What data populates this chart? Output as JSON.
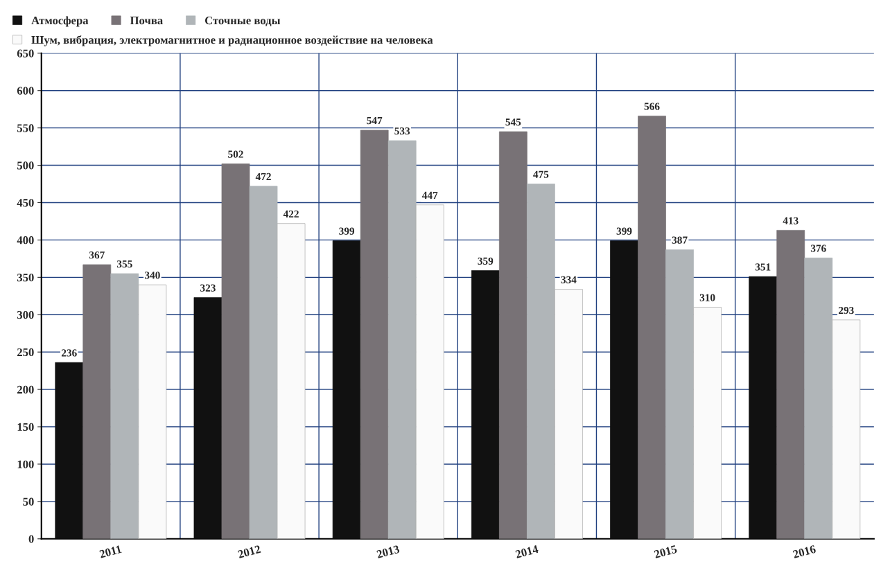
{
  "chart_data": {
    "type": "bar",
    "categories": [
      "2011",
      "2012",
      "2013",
      "2014",
      "2015",
      "2016"
    ],
    "series": [
      {
        "name": "Атмосфера",
        "color": "#111111",
        "values": [
          236,
          323,
          399,
          359,
          399,
          351
        ]
      },
      {
        "name": "Почва",
        "color": "#787276",
        "values": [
          367,
          502,
          547,
          545,
          566,
          413
        ]
      },
      {
        "name": "Сточные воды",
        "color": "#b0b5b8",
        "values": [
          355,
          472,
          533,
          475,
          387,
          376
        ]
      },
      {
        "name": "Шум, вибрация, электромагнитное и радиационное воздействие на человека",
        "color": "#fafafa",
        "values": [
          340,
          422,
          447,
          334,
          310,
          293
        ]
      }
    ],
    "ylim": [
      0,
      650
    ],
    "yticks": [
      0,
      50,
      100,
      150,
      200,
      250,
      300,
      350,
      400,
      450,
      500,
      550,
      600,
      650
    ],
    "grid": true,
    "legend": "top left",
    "data_labels": true
  }
}
